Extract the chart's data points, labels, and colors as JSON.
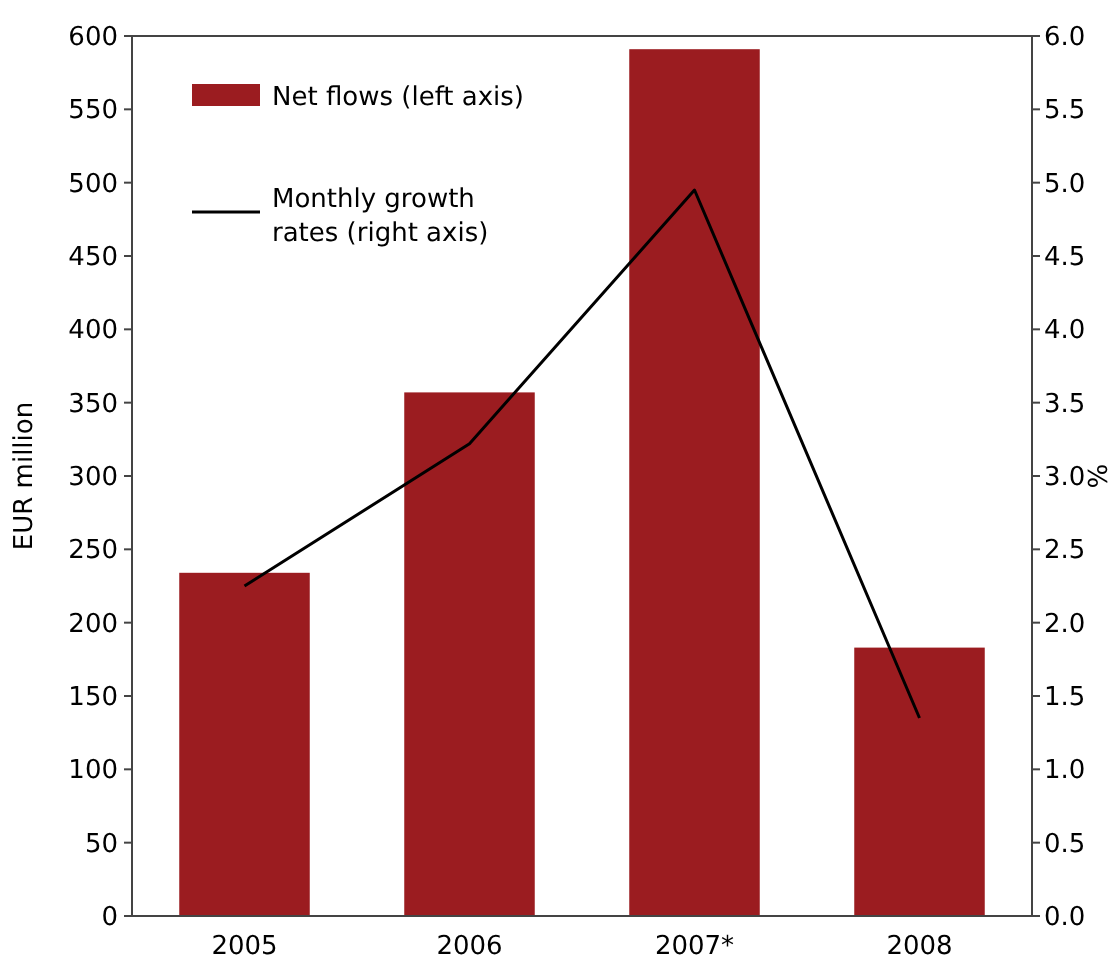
{
  "chart_data": {
    "type": "bar",
    "categories": [
      "2005",
      "2006",
      "2007*",
      "2008"
    ],
    "ylabel": "EUR million",
    "y2label": "%",
    "series": [
      {
        "name": "Net flows (left axis)",
        "color": "#9b1c20",
        "values": [
          234,
          357,
          591,
          183
        ]
      },
      {
        "name": "Monthly growth rates (right axis)",
        "type": "line",
        "axis": "y2",
        "color": "#000000",
        "values": [
          2.25,
          3.22,
          4.95,
          1.35
        ]
      }
    ],
    "ylim": [
      0,
      600
    ],
    "yticks": [
      0,
      50,
      100,
      150,
      200,
      250,
      300,
      350,
      400,
      450,
      500,
      550,
      600
    ],
    "y2lim": [
      0,
      6
    ],
    "y2ticks": [
      {
        "value": 0,
        "label": "0.0"
      },
      {
        "value": 0.5,
        "label": "0.5"
      },
      {
        "value": 1,
        "label": "1.0"
      },
      {
        "value": 1.5,
        "label": "1.5"
      },
      {
        "value": 2,
        "label": "2.0"
      },
      {
        "value": 2.5,
        "label": "2.5"
      },
      {
        "value": 3,
        "label": "3.0"
      },
      {
        "value": 3.5,
        "label": "3.5"
      },
      {
        "value": 4,
        "label": "4.0"
      },
      {
        "value": 4.5,
        "label": "4.5"
      },
      {
        "value": 5,
        "label": "5.0"
      },
      {
        "value": 5.5,
        "label": "5.5"
      },
      {
        "value": 6,
        "label": "6.0"
      }
    ],
    "legend": "top left",
    "marker": "none",
    "line_style": "solid"
  }
}
